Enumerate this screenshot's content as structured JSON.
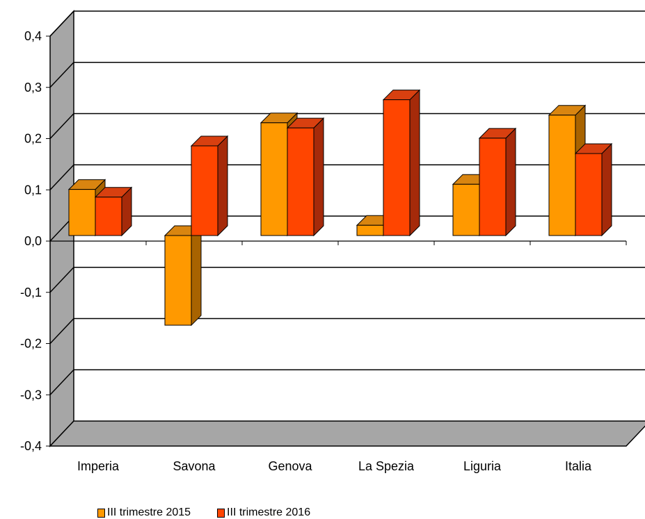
{
  "chart_data": {
    "type": "bar",
    "title": "",
    "xlabel": "",
    "ylabel": "",
    "categories": [
      "Imperia",
      "Savona",
      "Genova",
      "La Spezia",
      "Liguria",
      "Italia"
    ],
    "series": [
      {
        "name": "III trimestre 2015",
        "values": [
          0.09,
          -0.175,
          0.22,
          0.02,
          0.1,
          0.235
        ]
      },
      {
        "name": "III trimestre 2016",
        "values": [
          0.075,
          0.175,
          0.21,
          0.265,
          0.19,
          0.16
        ]
      }
    ],
    "ylim": [
      -0.4,
      0.4
    ],
    "yticks": [
      "-0,4",
      "-0,3",
      "-0,2",
      "-0,1",
      "0,0",
      "0,1",
      "0,2",
      "0,3",
      "0,4"
    ],
    "grid": true,
    "legend_position": "bottom-left",
    "colors": {
      "series": [
        "#FF9900",
        "#FF4500"
      ],
      "series_dark": [
        "#A86300",
        "#A52A0A"
      ],
      "series_top": [
        "#D98510",
        "#D84010"
      ],
      "wall": "#A6A6A6"
    }
  }
}
